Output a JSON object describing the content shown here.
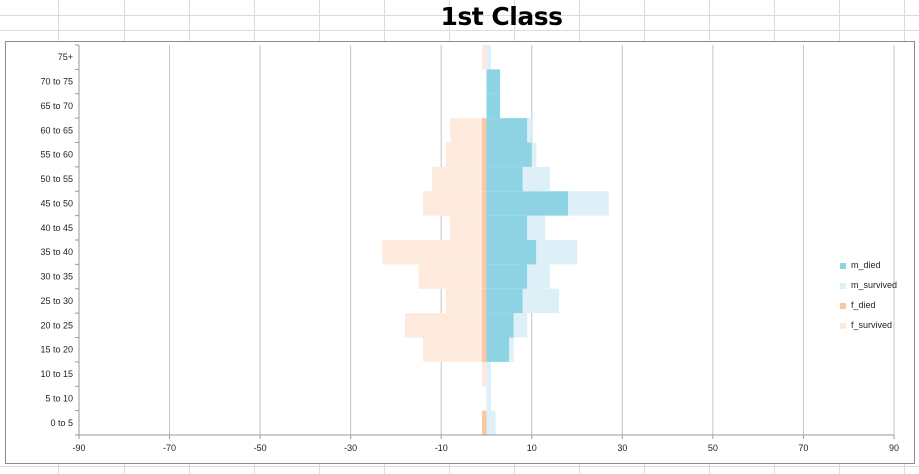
{
  "chart_data": {
    "type": "bar",
    "orientation": "horizontal",
    "stacked": true,
    "title": "1st Class",
    "xlabel": "",
    "ylabel": "",
    "categories": [
      "0 to 5",
      "5 to 10",
      "10 to 15",
      "15 to 20",
      "20 to 25",
      "25 to 30",
      "30 to 35",
      "35 to 40",
      "40 to 45",
      "45 to 50",
      "50 to 55",
      "55 to 60",
      "60 to 65",
      "65 to 70",
      "70 to 75",
      "75+"
    ],
    "xlim": [
      -90,
      90
    ],
    "xticks": [
      -90,
      -70,
      -50,
      -30,
      -10,
      10,
      30,
      50,
      70,
      90
    ],
    "grid": true,
    "legend_position": "right",
    "series": [
      {
        "name": "m_died",
        "color": "#8ed3e4",
        "values": [
          0,
          0,
          0,
          5,
          6,
          8,
          9,
          11,
          9,
          18,
          8,
          10,
          9,
          3,
          3,
          0
        ]
      },
      {
        "name": "m_survived",
        "color": "#ddf0f7",
        "values": [
          2,
          1,
          1,
          1,
          3,
          8,
          5,
          9,
          4,
          9,
          6,
          1,
          1,
          0,
          0,
          1
        ]
      },
      {
        "name": "f_died",
        "color": "#fac7a3",
        "values": [
          -1,
          0,
          0,
          -1,
          -1,
          -1,
          -1,
          -1,
          -1,
          -1,
          -1,
          -1,
          -1,
          0,
          0,
          0
        ]
      },
      {
        "name": "f_survived",
        "color": "#fdeadd",
        "values": [
          0,
          0,
          -1,
          -13,
          -17,
          -8,
          -14,
          -22,
          -7,
          -13,
          -11,
          -8,
          -7,
          0,
          0,
          -1
        ]
      }
    ]
  }
}
